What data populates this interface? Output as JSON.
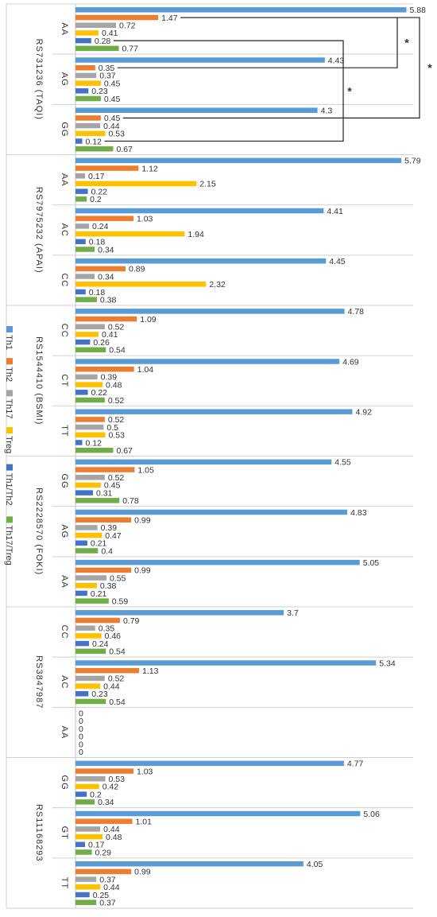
{
  "chart_data": {
    "type": "bar",
    "orientation": "horizontal",
    "grid": false,
    "legend_position": "left",
    "series_colors": {
      "Th1": "#5b9bd5",
      "Th2": "#ed7d31",
      "Th17": "#a5a5a5",
      "Treg": "#ffc000",
      "Th1/Th2": "#4472c4",
      "Th17/Treg": "#70ad47"
    },
    "legend": [
      "Th1",
      "Th2",
      "Th17",
      "Treg",
      "Th1/Th2",
      "Th17/Treg"
    ],
    "groups": [
      {
        "label": "RS731236 (TAQI)",
        "genotypes": [
          {
            "label": "AA",
            "values": [
              5.88,
              1.47,
              0.72,
              0.41,
              0.28,
              0.77
            ]
          },
          {
            "label": "AG",
            "values": [
              4.43,
              0.35,
              0.37,
              0.45,
              0.23,
              0.45
            ]
          },
          {
            "label": "GG",
            "values": [
              4.3,
              0.45,
              0.44,
              0.53,
              0.12,
              0.67
            ]
          }
        ]
      },
      {
        "label": "RS7975232 (APAI)",
        "genotypes": [
          {
            "label": "AA",
            "values": [
              5.79,
              1.12,
              0.17,
              2.15,
              0.22,
              0.2
            ]
          },
          {
            "label": "AC",
            "values": [
              4.41,
              1.03,
              0.24,
              1.94,
              0.18,
              0.34
            ]
          },
          {
            "label": "CC",
            "values": [
              4.45,
              0.89,
              0.34,
              2.32,
              0.18,
              0.38
            ]
          }
        ]
      },
      {
        "label": "RS1544410 (BSMI)",
        "genotypes": [
          {
            "label": "CC",
            "values": [
              4.78,
              1.09,
              0.52,
              0.41,
              0.26,
              0.54
            ]
          },
          {
            "label": "CT",
            "values": [
              4.69,
              1.04,
              0.39,
              0.48,
              0.22,
              0.52
            ]
          },
          {
            "label": "TT",
            "values": [
              4.92,
              0.52,
              0.5,
              0.53,
              0.12,
              0.67
            ]
          }
        ]
      },
      {
        "label": "RS2228570 (FOKI)",
        "genotypes": [
          {
            "label": "GG",
            "values": [
              4.55,
              1.05,
              0.52,
              0.45,
              0.31,
              0.78
            ]
          },
          {
            "label": "AG",
            "values": [
              4.83,
              0.99,
              0.39,
              0.47,
              0.21,
              0.4
            ]
          },
          {
            "label": "AA",
            "values": [
              5.05,
              0.99,
              0.55,
              0.38,
              0.21,
              0.59
            ]
          }
        ]
      },
      {
        "label": "RS3847987",
        "genotypes": [
          {
            "label": "CC",
            "values": [
              3.7,
              0.79,
              0.35,
              0.46,
              0.24,
              0.54
            ]
          },
          {
            "label": "AC",
            "values": [
              5.34,
              1.13,
              0.52,
              0.44,
              0.23,
              0.54
            ]
          },
          {
            "label": "AA",
            "values": [
              0,
              0,
              0,
              0,
              0,
              0
            ]
          }
        ]
      },
      {
        "label": "RS11168293",
        "genotypes": [
          {
            "label": "GG",
            "values": [
              4.77,
              1.03,
              0.53,
              0.42,
              0.2,
              0.34
            ]
          },
          {
            "label": "GT",
            "values": [
              5.06,
              1.01,
              0.44,
              0.48,
              0.17,
              0.29
            ]
          },
          {
            "label": "TT",
            "values": [
              4.05,
              0.99,
              0.37,
              0.44,
              0.25,
              0.37
            ]
          }
        ]
      }
    ],
    "xlim": [
      0,
      6.5
    ],
    "annotations": [
      {
        "text": "*",
        "between": [
          "RS731236 (TAQI) AA Th2",
          "RS731236 (TAQI) AG Th2"
        ]
      },
      {
        "text": "*",
        "between": [
          "RS731236 (TAQI) AA Th2",
          "RS731236 (TAQI) GG Th2"
        ]
      },
      {
        "text": "*",
        "between": [
          "RS731236 (TAQI) AA Th1/Th2",
          "RS731236 (TAQI) GG Th1/Th2"
        ]
      }
    ]
  }
}
